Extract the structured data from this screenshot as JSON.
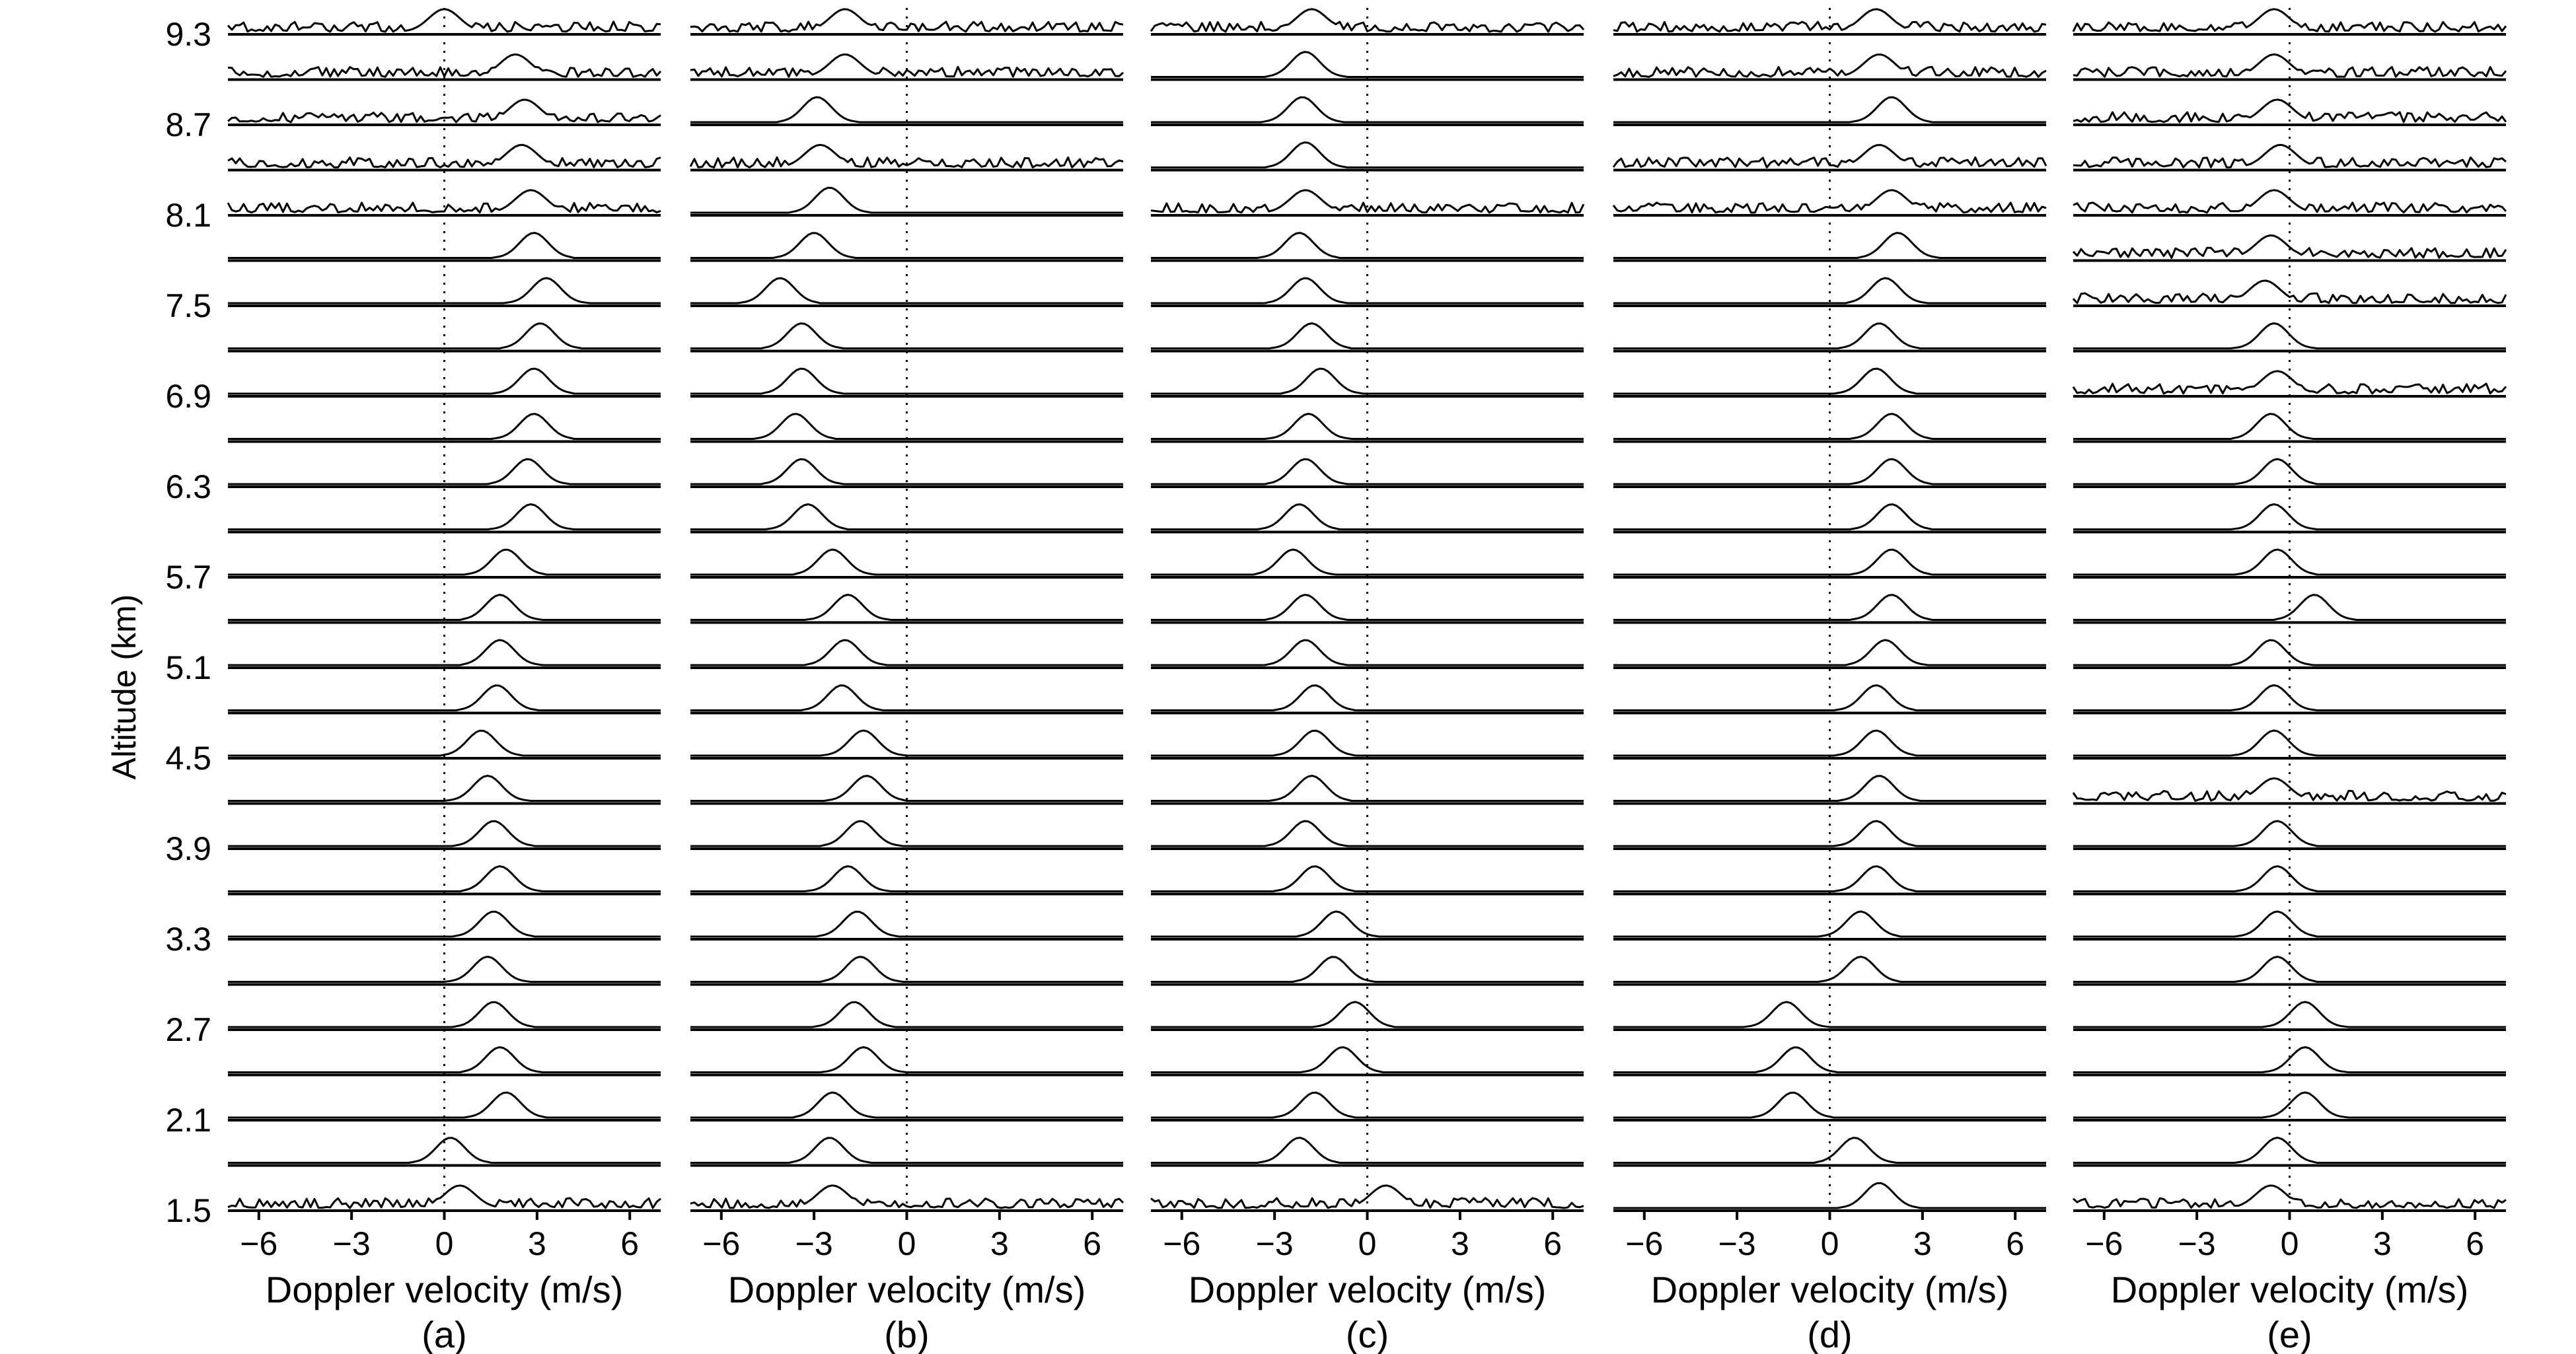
{
  "figure": {
    "ylabel": "Altitude (km)",
    "xlabel": "Doppler velocity (m/s)",
    "ytick_labels": [
      "9.3",
      "8.7",
      "8.1",
      "7.5",
      "6.9",
      "6.3",
      "5.7",
      "5.1",
      "4.5",
      "3.9",
      "3.3",
      "2.7",
      "2.1",
      "1.5"
    ],
    "xtick_labels": [
      "−6",
      "−3",
      "0",
      "3",
      "6"
    ],
    "panel_labels": [
      "(a)",
      "(b)",
      "(c)",
      "(d)",
      "(e)"
    ]
  },
  "chart_data": [
    {
      "type": "line",
      "panel": "(a)",
      "xlabel": "Doppler velocity (m/s)",
      "ylabel": "Altitude (km)",
      "xlim": [
        -7,
        7
      ],
      "xticks": [
        -6,
        -3,
        0,
        3,
        6
      ],
      "altitude_km": [
        1.5,
        1.8,
        2.1,
        2.4,
        2.7,
        3.0,
        3.3,
        3.6,
        3.9,
        4.2,
        4.5,
        4.8,
        5.1,
        5.4,
        5.7,
        6.0,
        6.3,
        6.6,
        6.9,
        7.2,
        7.5,
        7.8,
        8.1,
        8.4,
        8.7,
        9.0,
        9.3
      ],
      "peak_velocity_ms": [
        0.5,
        0.2,
        2.0,
        1.8,
        1.6,
        1.4,
        1.6,
        1.8,
        1.6,
        1.4,
        1.2,
        1.7,
        1.8,
        1.8,
        2.0,
        2.8,
        2.7,
        2.9,
        2.9,
        3.1,
        3.3,
        2.9,
        2.8,
        2.5,
        2.6,
        2.3,
        0.0
      ],
      "zero_line": 0,
      "noise_rows_altitude_km": [
        1.5,
        8.1,
        8.4,
        8.7,
        9.0,
        9.3
      ]
    },
    {
      "type": "line",
      "panel": "(b)",
      "xlabel": "Doppler velocity (m/s)",
      "xlim": [
        -7,
        7
      ],
      "xticks": [
        -6,
        -3,
        0,
        3,
        6
      ],
      "altitude_km": [
        1.5,
        1.8,
        2.1,
        2.4,
        2.7,
        3.0,
        3.3,
        3.6,
        3.9,
        4.2,
        4.5,
        4.8,
        5.1,
        5.4,
        5.7,
        6.0,
        6.3,
        6.6,
        6.9,
        7.2,
        7.5,
        7.8,
        8.1,
        8.4,
        8.7,
        9.0,
        9.3
      ],
      "peak_velocity_ms": [
        -2.4,
        -2.5,
        -2.4,
        -1.4,
        -1.7,
        -1.5,
        -1.6,
        -1.9,
        -1.5,
        -1.3,
        -1.4,
        -2.1,
        -2.0,
        -1.9,
        -2.4,
        -3.2,
        -3.4,
        -3.6,
        -3.4,
        -3.4,
        -4.1,
        -3.0,
        -2.5,
        -2.8,
        -2.9,
        -2.0,
        -2.0
      ],
      "zero_line": 0,
      "noise_rows_altitude_km": [
        1.5,
        8.4,
        9.0,
        9.3
      ]
    },
    {
      "type": "line",
      "panel": "(c)",
      "xlabel": "Doppler velocity (m/s)",
      "xlim": [
        -7,
        7
      ],
      "xticks": [
        -6,
        -3,
        0,
        3,
        6
      ],
      "altitude_km": [
        1.5,
        1.8,
        2.1,
        2.4,
        2.7,
        3.0,
        3.3,
        3.6,
        3.9,
        4.2,
        4.5,
        4.8,
        5.1,
        5.4,
        5.7,
        6.0,
        6.3,
        6.6,
        6.9,
        7.2,
        7.5,
        7.8,
        8.1,
        8.4,
        8.7,
        9.0,
        9.3
      ],
      "peak_velocity_ms": [
        0.6,
        -2.2,
        -1.7,
        -0.8,
        -0.4,
        -1.1,
        -1.0,
        -1.7,
        -2.0,
        -1.8,
        -1.7,
        -1.7,
        -2.0,
        -2.0,
        -2.4,
        -2.2,
        -2.0,
        -1.9,
        -1.5,
        -1.8,
        -2.0,
        -2.2,
        -2.0,
        -2.0,
        -2.1,
        -2.0,
        -1.8
      ],
      "zero_line": 0,
      "noise_rows_altitude_km": [
        1.5,
        8.1,
        9.3
      ]
    },
    {
      "type": "line",
      "panel": "(d)",
      "xlabel": "Doppler velocity (m/s)",
      "xlim": [
        -7,
        7
      ],
      "xticks": [
        -6,
        -3,
        0,
        3,
        6
      ],
      "altitude_km": [
        1.5,
        1.8,
        2.1,
        2.4,
        2.7,
        3.0,
        3.3,
        3.6,
        3.9,
        4.2,
        4.5,
        4.8,
        5.1,
        5.4,
        5.7,
        6.0,
        6.3,
        6.6,
        6.9,
        7.2,
        7.5,
        7.8,
        8.1,
        8.4,
        8.7,
        9.0,
        9.3
      ],
      "peak_velocity_ms": [
        1.6,
        0.8,
        -1.2,
        -1.1,
        -1.4,
        1.0,
        1.0,
        1.5,
        1.5,
        1.6,
        1.5,
        1.5,
        1.8,
        2.0,
        2.0,
        2.0,
        2.0,
        2.0,
        1.5,
        1.6,
        1.8,
        2.2,
        2.0,
        1.6,
        2.0,
        1.6,
        1.5
      ],
      "zero_line": 0,
      "noise_rows_altitude_km": [
        8.1,
        8.4,
        9.0,
        9.3
      ]
    },
    {
      "type": "line",
      "panel": "(e)",
      "xlabel": "Doppler velocity (m/s)",
      "xlim": [
        -7,
        7
      ],
      "xticks": [
        -6,
        -3,
        0,
        3,
        6
      ],
      "altitude_km": [
        1.5,
        1.8,
        2.1,
        2.4,
        2.7,
        3.0,
        3.3,
        3.6,
        3.9,
        4.2,
        4.5,
        4.8,
        5.1,
        5.4,
        5.7,
        6.0,
        6.3,
        6.6,
        6.9,
        7.2,
        7.5,
        7.8,
        8.1,
        8.4,
        8.7,
        9.0,
        9.3
      ],
      "peak_velocity_ms": [
        -0.6,
        -0.4,
        0.5,
        0.5,
        0.5,
        -0.4,
        -0.4,
        -0.4,
        -0.4,
        -0.5,
        -0.5,
        -0.5,
        -0.6,
        0.8,
        -0.4,
        -0.5,
        -0.4,
        -0.6,
        -0.4,
        -0.5,
        -0.8,
        -0.6,
        -0.5,
        -0.3,
        -0.4,
        -0.5,
        -0.5
      ],
      "zero_line": 0,
      "noise_rows_altitude_km": [
        1.5,
        4.2,
        6.9,
        7.5,
        7.8,
        8.1,
        8.4,
        8.7,
        9.0,
        9.3
      ]
    }
  ]
}
